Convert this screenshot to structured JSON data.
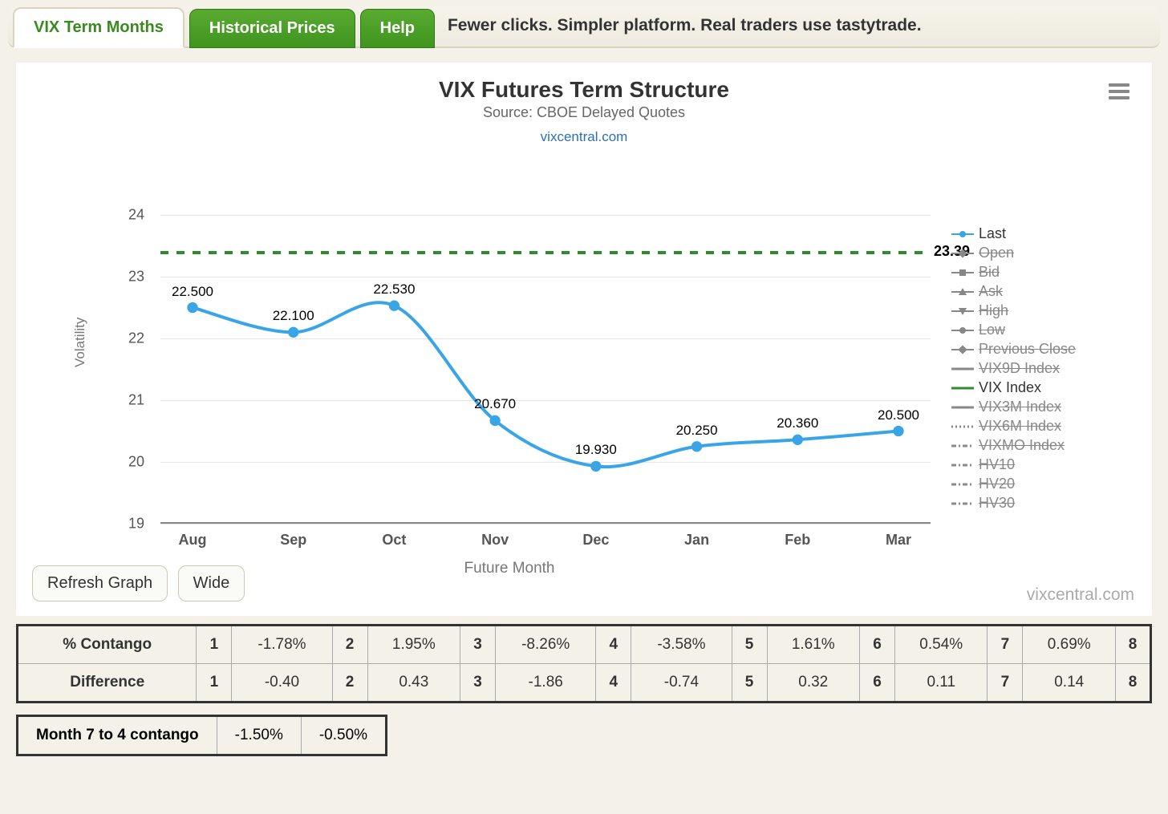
{
  "tabs": {
    "active": "VIX Term Months",
    "historical": "Historical Prices",
    "help": "Help"
  },
  "promo": "Fewer clicks. Simpler platform. Real traders use tastytrade.",
  "chart": {
    "type": "line",
    "title": "VIX Futures Term Structure",
    "subtitle": "Source: CBOE Delayed Quotes",
    "link": "vixcentral.com",
    "ylabel": "Volatility",
    "xlabel": "Future Month",
    "title_fontsize": 28,
    "subtitle_fontsize": 18,
    "label_fontsize": 17,
    "tick_fontsize": 18,
    "ylim": [
      19,
      24
    ],
    "yticks": [
      19,
      20,
      21,
      22,
      23,
      24
    ],
    "categories": [
      "Aug",
      "Sep",
      "Oct",
      "Nov",
      "Dec",
      "Jan",
      "Feb",
      "Mar"
    ],
    "series_last": {
      "name": "Last",
      "values": [
        22.5,
        22.1,
        22.53,
        20.67,
        19.93,
        20.25,
        20.36,
        20.5
      ],
      "labels": [
        "22.500",
        "22.100",
        "22.530",
        "20.670",
        "19.930",
        "20.250",
        "20.360",
        "20.500"
      ],
      "color": "#3aa5e6",
      "line_width": 4,
      "marker": "circle",
      "marker_size": 8
    },
    "vix_index": {
      "name": "VIX Index",
      "value": 23.39,
      "label": "23.39",
      "color": "#2e8b2e",
      "dash": "10,10",
      "line_width": 4
    },
    "background_color": "#ffffff",
    "grid_color": "#e6e6e6",
    "axis_color": "#888888"
  },
  "legend": [
    {
      "label": "Last",
      "active": true,
      "icon": "line-circle",
      "color": "#3aa5e6"
    },
    {
      "label": "Open",
      "active": false,
      "icon": "line-diamond",
      "color": "#888"
    },
    {
      "label": "Bid",
      "active": false,
      "icon": "line-square",
      "color": "#888"
    },
    {
      "label": "Ask",
      "active": false,
      "icon": "line-tri-up",
      "color": "#888"
    },
    {
      "label": "High",
      "active": false,
      "icon": "line-tri-down",
      "color": "#888"
    },
    {
      "label": "Low",
      "active": false,
      "icon": "line-circle",
      "color": "#888"
    },
    {
      "label": "Previous Close",
      "active": false,
      "icon": "line-diamond",
      "color": "#888"
    },
    {
      "label": "VIX9D Index",
      "active": false,
      "icon": "line-solid",
      "color": "#888"
    },
    {
      "label": "VIX Index",
      "active": true,
      "icon": "line-solid",
      "color": "#2e8b2e"
    },
    {
      "label": "VIX3M Index",
      "active": false,
      "icon": "line-solid",
      "color": "#888"
    },
    {
      "label": "VIX6M Index",
      "active": false,
      "icon": "line-dotted",
      "color": "#888"
    },
    {
      "label": "VIXMO Index",
      "active": false,
      "icon": "line-dashdot",
      "color": "#888"
    },
    {
      "label": "HV10",
      "active": false,
      "icon": "line-dashdot",
      "color": "#888"
    },
    {
      "label": "HV20",
      "active": false,
      "icon": "line-dashdot",
      "color": "#888"
    },
    {
      "label": "HV30",
      "active": false,
      "icon": "line-dashdot",
      "color": "#888"
    }
  ],
  "buttons": {
    "refresh": "Refresh Graph",
    "wide": "Wide"
  },
  "watermark": "vixcentral.com",
  "table_main": {
    "rows": [
      {
        "header": "% Contango",
        "cells": [
          "1",
          "-1.78%",
          "2",
          "1.95%",
          "3",
          "-8.26%",
          "4",
          "-3.58%",
          "5",
          "1.61%",
          "6",
          "0.54%",
          "7",
          "0.69%",
          "8"
        ]
      },
      {
        "header": "Difference",
        "cells": [
          "1",
          "-0.40",
          "2",
          "0.43",
          "3",
          "-1.86",
          "4",
          "-0.74",
          "5",
          "0.32",
          "6",
          "0.11",
          "7",
          "0.14",
          "8"
        ]
      }
    ]
  },
  "table_small": {
    "header": "Month 7 to 4 contango",
    "cells": [
      "-1.50%",
      "-0.50%"
    ]
  }
}
